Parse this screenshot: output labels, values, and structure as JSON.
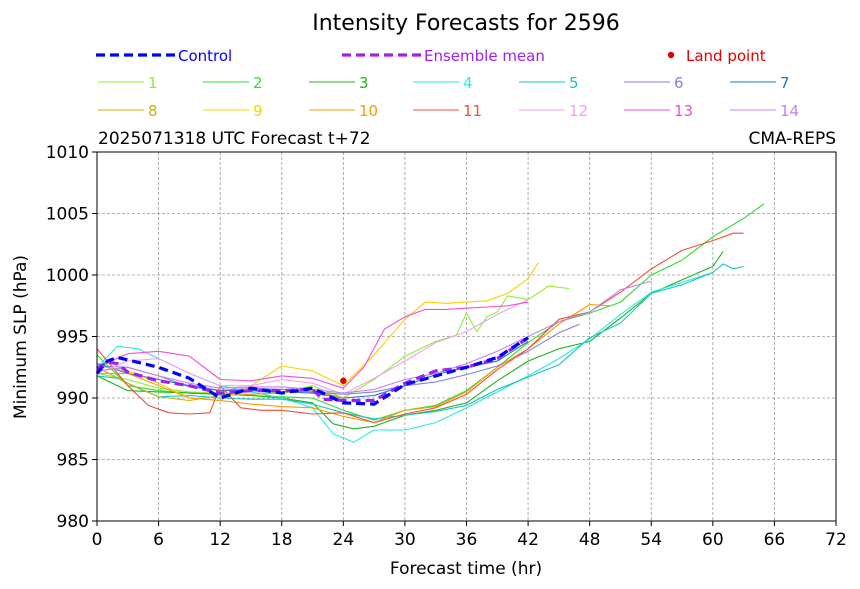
{
  "chart_data": {
    "type": "line",
    "title": "Intensity Forecasts for 2596",
    "subtitle_left": "2025071318 UTC Forecast t+72",
    "subtitle_right": "CMA-REPS",
    "xlabel": "Forecast time (hr)",
    "ylabel": "Minimum SLP (hPa)",
    "xlim": [
      0,
      72
    ],
    "ylim": [
      980,
      1010
    ],
    "xticks": [
      0,
      6,
      12,
      18,
      24,
      30,
      36,
      42,
      48,
      54,
      60,
      66,
      72
    ],
    "yticks": [
      980,
      985,
      990,
      995,
      1000,
      1005,
      1010
    ],
    "grid": true,
    "legend": [
      {
        "label": "Control",
        "color": "#0000ff",
        "style": "dashed"
      },
      {
        "label": "Ensemble mean",
        "color": "#a020f0",
        "style": "dashed"
      },
      {
        "label": "Land point",
        "color": "#e00000",
        "style": "marker"
      },
      {
        "label": "1",
        "color": "#90ee32"
      },
      {
        "label": "2",
        "color": "#32dc32"
      },
      {
        "label": "3",
        "color": "#1eb41e"
      },
      {
        "label": "4",
        "color": "#2ee8e0"
      },
      {
        "label": "5",
        "color": "#19c3c8"
      },
      {
        "label": "6",
        "color": "#8080e0"
      },
      {
        "label": "7",
        "color": "#1e78c8"
      },
      {
        "label": "8",
        "color": "#c8b400"
      },
      {
        "label": "9",
        "color": "#f5d200"
      },
      {
        "label": "10",
        "color": "#f0a000"
      },
      {
        "label": "11",
        "color": "#f0503c"
      },
      {
        "label": "12",
        "color": "#f5a0f0"
      },
      {
        "label": "13",
        "color": "#f050dc"
      },
      {
        "label": "14",
        "color": "#c880f0"
      }
    ],
    "land_point": {
      "x": 24,
      "y": 991.4
    },
    "series": [
      {
        "name": "Control",
        "color": "#0000ff",
        "style": "dashed",
        "x": [
          0,
          1,
          2,
          3,
          6,
          9,
          12,
          15,
          18,
          21,
          24,
          27,
          30,
          33,
          36,
          39,
          42
        ],
        "y": [
          992.0,
          993.0,
          993.3,
          993.1,
          992.5,
          991.6,
          990.0,
          990.8,
          990.4,
          990.8,
          989.6,
          989.5,
          991.1,
          991.8,
          992.5,
          993.3,
          994.9
        ]
      },
      {
        "name": "Ensemble mean",
        "color": "#a020f0",
        "style": "dashed",
        "x": [
          0,
          1,
          2,
          3,
          6,
          9,
          12,
          15,
          18,
          21,
          22,
          24,
          27,
          30,
          33,
          36,
          39,
          42
        ],
        "y": [
          992.4,
          992.9,
          992.8,
          992.1,
          991.4,
          991.0,
          990.4,
          990.6,
          990.6,
          990.7,
          989.9,
          989.8,
          989.8,
          991.2,
          992.2,
          992.5,
          993.2,
          994.9
        ]
      },
      {
        "name": "1",
        "color": "#90ee32",
        "x": [
          0,
          3,
          6,
          9,
          12,
          15,
          18,
          21,
          24,
          27,
          30,
          33,
          35,
          36,
          37,
          38,
          39,
          40,
          42,
          44,
          46
        ],
        "y": [
          992.0,
          991.5,
          990.8,
          990.5,
          990.4,
          990.3,
          990.5,
          991.0,
          990.0,
          991.5,
          993.4,
          994.6,
          995.1,
          996.9,
          995.4,
          996.6,
          997.0,
          998.3,
          998.0,
          999.1,
          998.9
        ]
      },
      {
        "name": "2",
        "color": "#32dc32",
        "x": [
          0,
          3,
          6,
          9,
          12,
          15,
          18,
          21,
          24,
          27,
          30,
          33,
          36,
          39,
          42,
          45,
          48,
          51,
          54,
          57,
          60,
          63,
          65
        ],
        "y": [
          993.5,
          991.0,
          990.6,
          990.4,
          990.3,
          990.2,
          990.1,
          990.0,
          989.0,
          988.2,
          989.0,
          989.4,
          990.6,
          992.5,
          994.5,
          996.2,
          996.9,
          997.8,
          1000.0,
          1001.2,
          1003.1,
          1004.6,
          1005.8
        ]
      },
      {
        "name": "3",
        "color": "#1eb41e",
        "x": [
          0,
          3,
          6,
          9,
          12,
          15,
          18,
          21,
          23,
          25,
          27,
          30,
          33,
          36,
          39,
          42,
          45,
          48,
          51,
          54,
          57,
          60,
          61
        ],
        "y": [
          991.8,
          990.6,
          990.5,
          990.4,
          990.3,
          990.2,
          990.0,
          989.6,
          987.9,
          987.5,
          987.7,
          988.6,
          989.0,
          989.6,
          991.4,
          993.0,
          994.0,
          994.6,
          996.5,
          998.5,
          999.6,
          1000.7,
          1001.9
        ]
      },
      {
        "name": "4",
        "color": "#2ee8e0",
        "x": [
          0,
          2,
          4,
          6,
          9,
          12,
          15,
          18,
          21,
          23,
          25,
          27,
          30,
          33,
          36,
          39,
          42,
          45,
          48,
          51,
          54,
          57,
          60
        ],
        "y": [
          992.5,
          994.2,
          994.0,
          993.2,
          992.0,
          991.0,
          990.5,
          990.0,
          989.2,
          987.1,
          986.4,
          987.4,
          987.4,
          988.0,
          989.2,
          990.5,
          991.8,
          993.2,
          994.8,
          996.8,
          998.6,
          999.4,
          1000.2
        ]
      },
      {
        "name": "5",
        "color": "#19c3c8",
        "x": [
          0,
          2,
          4,
          6,
          9,
          12,
          15,
          18,
          21,
          24,
          27,
          30,
          33,
          36,
          39,
          42,
          45,
          48,
          51,
          54,
          57,
          60,
          61,
          62,
          63
        ],
        "y": [
          991.8,
          991.6,
          990.8,
          990.1,
          990.2,
          990.0,
          989.9,
          989.9,
          989.5,
          988.8,
          988.3,
          988.6,
          988.9,
          989.4,
          990.7,
          991.7,
          992.7,
          994.9,
          996.1,
          998.5,
          999.2,
          1000.2,
          1000.9,
          1000.5,
          1000.7
        ]
      },
      {
        "name": "6",
        "color": "#8080e0",
        "x": [
          0,
          3,
          6,
          9,
          12,
          15,
          18,
          21,
          24,
          27,
          30,
          33,
          36,
          39,
          42,
          45,
          47
        ],
        "y": [
          992.6,
          992.5,
          991.8,
          990.9,
          990.6,
          990.8,
          990.7,
          990.5,
          990.3,
          990.5,
          991.0,
          991.3,
          991.9,
          992.6,
          993.8,
          995.3,
          996.0
        ]
      },
      {
        "name": "7",
        "color": "#1e78c8",
        "x": [
          0,
          3,
          6,
          9,
          12,
          15,
          18,
          21,
          24,
          27,
          30,
          33,
          36,
          39,
          42
        ],
        "y": [
          992.8,
          992.0,
          991.5,
          991.0,
          990.6,
          990.6,
          990.5,
          990.4,
          990.0,
          990.2,
          991.0,
          991.9,
          992.5,
          993.0,
          994.6
        ]
      },
      {
        "name": "8",
        "color": "#c8b400",
        "x": [
          0,
          3,
          6,
          9,
          12,
          15,
          18,
          21,
          24
        ],
        "y": [
          992.5,
          991.2,
          990.1,
          989.8,
          990.2,
          990.3,
          990.4,
          990.6,
          990.0
        ]
      },
      {
        "name": "9",
        "color": "#f5d200",
        "x": [
          0,
          3,
          6,
          9,
          12,
          15,
          18,
          21,
          24,
          27,
          30,
          32,
          34,
          36,
          38,
          40,
          42,
          43
        ],
        "y": [
          992.6,
          992.2,
          991.2,
          990.0,
          989.8,
          991.0,
          992.6,
          992.2,
          991.0,
          993.5,
          996.4,
          997.8,
          997.7,
          997.8,
          997.9,
          998.5,
          999.7,
          1001.0
        ]
      },
      {
        "name": "10",
        "color": "#f0a000",
        "x": [
          0,
          3,
          6,
          9,
          12,
          15,
          18,
          21,
          24,
          27,
          30,
          33,
          36,
          39,
          42,
          45,
          48,
          50
        ],
        "y": [
          992.0,
          992.0,
          991.0,
          990.0,
          989.8,
          989.5,
          989.3,
          989.2,
          988.5,
          988.0,
          989.0,
          989.3,
          990.5,
          992.5,
          994.0,
          996.0,
          997.6,
          997.5
        ]
      },
      {
        "name": "11",
        "color": "#f0503c",
        "x": [
          0,
          3,
          5,
          7,
          9,
          11,
          12,
          14,
          16,
          18,
          21,
          24,
          27,
          30,
          33,
          36,
          39,
          42,
          45,
          48,
          51,
          54,
          57,
          60,
          62,
          63
        ],
        "y": [
          994.0,
          991.0,
          989.4,
          988.8,
          988.7,
          988.8,
          991.0,
          989.2,
          989.0,
          989.0,
          988.7,
          988.8,
          988.0,
          988.7,
          989.2,
          990.3,
          992.3,
          994.0,
          996.4,
          997.0,
          998.6,
          1000.5,
          1002.0,
          1002.8,
          1003.4,
          1003.4
        ]
      },
      {
        "name": "12",
        "color": "#f5a0f0",
        "x": [
          0,
          3,
          6,
          9,
          12,
          15,
          18,
          21,
          24,
          27,
          30,
          33,
          36,
          39,
          42
        ],
        "y": [
          992.0,
          993.0,
          993.2,
          992.0,
          991.0,
          991.0,
          991.5,
          991.2,
          990.3,
          991.6,
          993.0,
          994.5,
          995.4,
          996.8,
          998.0
        ]
      },
      {
        "name": "13",
        "color": "#f050dc",
        "x": [
          0,
          3,
          6,
          9,
          12,
          15,
          18,
          21,
          24,
          26,
          28,
          30,
          32,
          34,
          36,
          38,
          40,
          42
        ],
        "y": [
          992.5,
          993.6,
          993.8,
          993.4,
          991.5,
          991.4,
          991.8,
          991.6,
          990.8,
          992.5,
          995.6,
          996.6,
          997.2,
          997.2,
          997.3,
          997.4,
          997.5,
          997.8
        ]
      },
      {
        "name": "14",
        "color": "#c880f0",
        "x": [
          0,
          3,
          6,
          9,
          12,
          15,
          18,
          21,
          24,
          27,
          30,
          33,
          36,
          39,
          42,
          45,
          48,
          51,
          54
        ],
        "y": [
          992.2,
          992.5,
          991.8,
          991.2,
          990.8,
          990.9,
          990.9,
          990.7,
          990.4,
          990.7,
          991.5,
          992.0,
          992.8,
          993.8,
          995.0,
          996.2,
          997.0,
          998.8,
          999.5
        ]
      }
    ]
  }
}
